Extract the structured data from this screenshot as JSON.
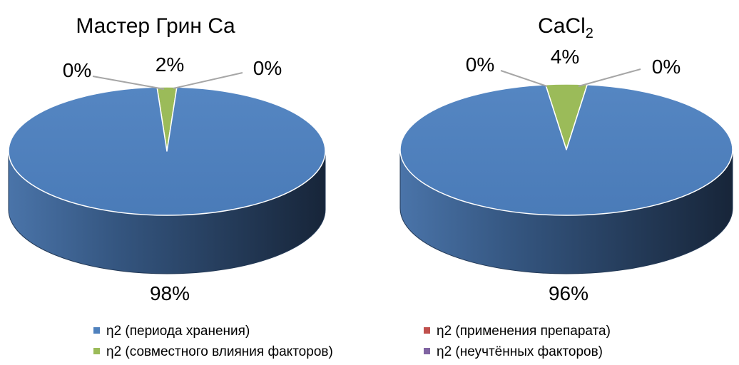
{
  "chart_data": [
    {
      "type": "pie",
      "title": "Мастер Грин Ca",
      "labels": [
        "η2 (периода хранения)",
        "η2 (совместного влияния факторов)",
        "η2 (применения препарата)",
        "η2 (неучтённых факторов)"
      ],
      "values": [
        98,
        2,
        0,
        0
      ],
      "data_labels": [
        "98%",
        "2%",
        "0%",
        "0%"
      ],
      "colors": [
        "#4F81BD",
        "#9BBB59",
        "#C0504D",
        "#8064A2"
      ]
    },
    {
      "type": "pie",
      "title": "CaCl",
      "title_subscript": "2",
      "labels": [
        "η2 (периода хранения)",
        "η2 (совместного влияния факторов)",
        "η2 (применения препарата)",
        "η2 (неучтённых факторов)"
      ],
      "values": [
        96,
        4,
        0,
        0
      ],
      "data_labels": [
        "96%",
        "4%",
        "0%",
        "0%"
      ],
      "colors": [
        "#4F81BD",
        "#9BBB59",
        "#C0504D",
        "#8064A2"
      ]
    }
  ],
  "legend": {
    "placement": "bottom",
    "items": [
      {
        "label": "η2 (периода хранения)",
        "color": "#4F81BD"
      },
      {
        "label": "η2 (применения препарата)",
        "color": "#C0504D"
      },
      {
        "label": "η2 (совместного влияния факторов)",
        "color": "#9BBB59"
      },
      {
        "label": "η2 (неучтённых факторов)",
        "color": "#8064A2"
      }
    ]
  }
}
